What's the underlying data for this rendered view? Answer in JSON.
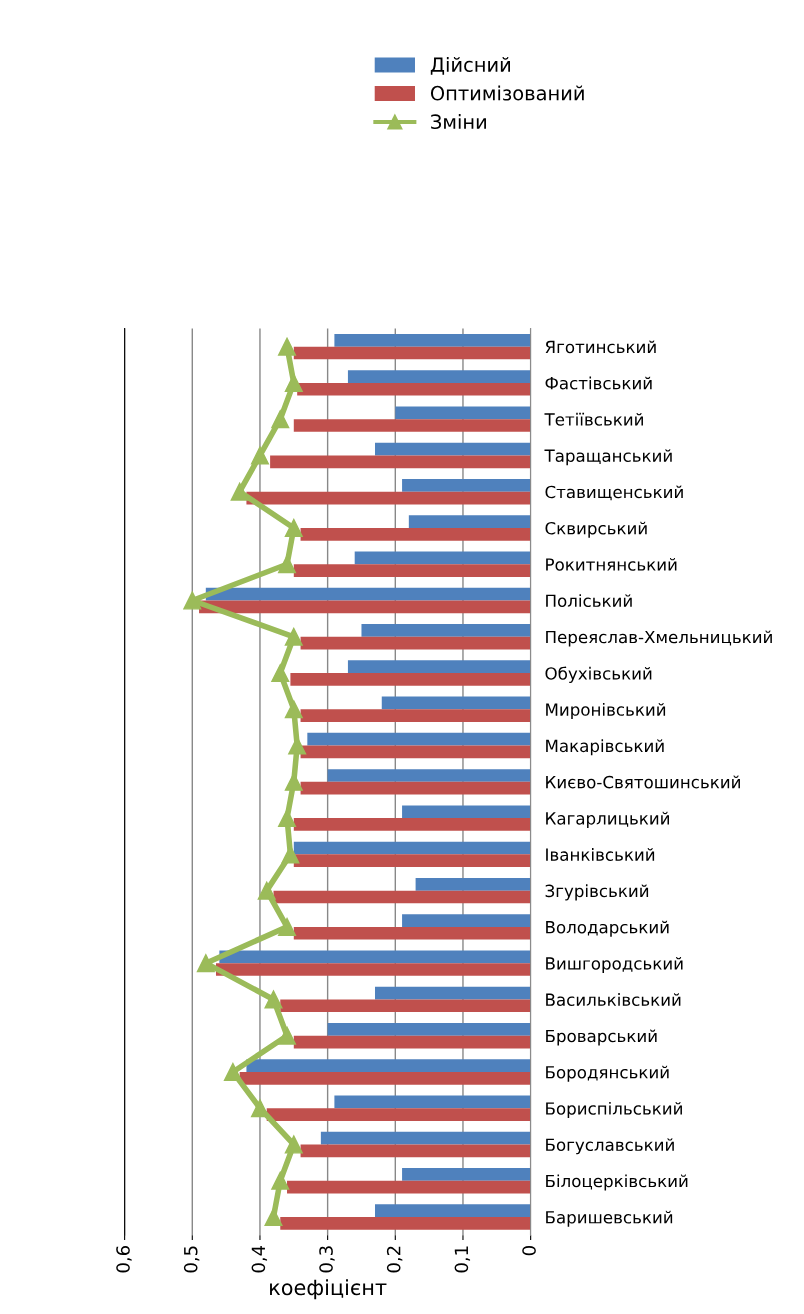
{
  "chart_data": {
    "type": "bar",
    "orientation": "horizontal",
    "xlabel": "коефіцієнт",
    "categories": [
      "Яготинський",
      "Фастівський",
      "Тетіївський",
      "Таращанський",
      "Ставищенський",
      "Сквирський",
      "Рокитнянський",
      "Поліський",
      "Переяслав-Хмельницький",
      "Обухівський",
      "Миронівський",
      "Макарівський",
      "Києво-Святошинський",
      "Кагарлицький",
      "Іванківський",
      "Згурівський",
      "Володарський",
      "Вишгородський",
      "Васильківський",
      "Броварський",
      "Бородянський",
      "Бориспільський",
      "Богуславський",
      "Білоцерківський",
      "Баришевський"
    ],
    "series": [
      {
        "name": "Дійсний",
        "color": "#4f81bd",
        "values": [
          0.29,
          0.27,
          0.2,
          0.23,
          0.19,
          0.18,
          0.26,
          0.48,
          0.25,
          0.27,
          0.22,
          0.33,
          0.3,
          0.19,
          0.35,
          0.17,
          0.19,
          0.46,
          0.23,
          0.3,
          0.42,
          0.29,
          0.31,
          0.19,
          0.23
        ]
      },
      {
        "name": "Оптимізований",
        "color": "#c0504d",
        "values": [
          0.35,
          0.345,
          0.35,
          0.385,
          0.42,
          0.34,
          0.35,
          0.49,
          0.34,
          0.355,
          0.34,
          0.34,
          0.34,
          0.35,
          0.35,
          0.38,
          0.35,
          0.465,
          0.37,
          0.35,
          0.43,
          0.39,
          0.34,
          0.36,
          0.37
        ]
      },
      {
        "name": "Зміни",
        "type": "line",
        "marker": "triangle",
        "color": "#9bbb59",
        "values": [
          0.36,
          0.35,
          0.37,
          0.4,
          0.43,
          0.35,
          0.36,
          0.5,
          0.35,
          0.37,
          0.35,
          0.345,
          0.35,
          0.36,
          0.355,
          0.39,
          0.36,
          0.48,
          0.38,
          0.36,
          0.44,
          0.4,
          0.35,
          0.37,
          0.38
        ]
      }
    ],
    "xlim": [
      0.6,
      0
    ],
    "xticks": [
      {
        "value": 0.6,
        "label": "0,6"
      },
      {
        "value": 0.5,
        "label": "0,5"
      },
      {
        "value": 0.4,
        "label": "0,4"
      },
      {
        "value": 0.3,
        "label": "0,3"
      },
      {
        "value": 0.2,
        "label": "0,2"
      },
      {
        "value": 0.1,
        "label": "0,1"
      },
      {
        "value": 0,
        "label": "0"
      }
    ],
    "grid": "x",
    "legend": "top right"
  }
}
